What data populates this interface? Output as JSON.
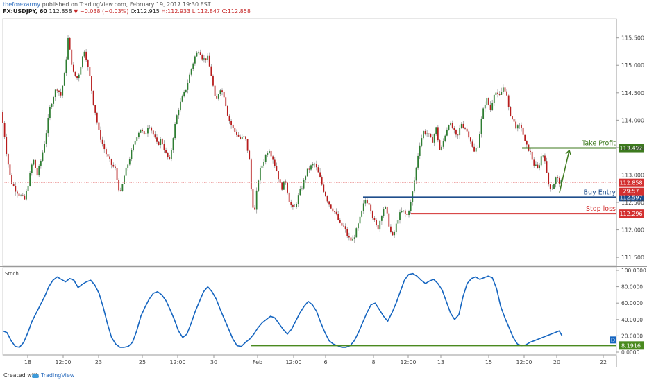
{
  "header": {
    "author": "theforexarmy",
    "published": "published on TradingView.com, February 19, 2017 19:30 EST",
    "symbol": "FX:USDJPY, 60",
    "last": "112.858",
    "change": "−0.038 (−0.03%)",
    "open": "O:112.915",
    "high": "H:112.933",
    "low": "L:112.847",
    "close": "C:112.858"
  },
  "footer": {
    "created_with": "Created with",
    "brand": "TradingView"
  },
  "colors": {
    "up_candle": "#2e7d32",
    "down_candle": "#b71c1c",
    "wick": "#999999",
    "take_profit": "#3d7a1e",
    "buy_entry": "#1f4e8c",
    "stop_loss": "#d32f2f",
    "stoch": "#1565c0",
    "stoch_level": "#4a8a1f",
    "last_price_badge": "#d32f2f",
    "countdown_badge": "#d32f2f"
  },
  "chart_data": [
    {
      "type": "candlestick",
      "title": "FX:USDJPY, 60",
      "ylim": [
        111.35,
        115.85
      ],
      "yticks": [
        "115.500",
        "115.000",
        "114.500",
        "114.000",
        "113.500",
        "113.000",
        "112.500",
        "112.000",
        "111.500"
      ],
      "xticks": [
        "18",
        "12:00",
        "23",
        "25",
        "12:00",
        "30",
        "Feb",
        "12:00",
        "6",
        "8",
        "12:00",
        "13",
        "15",
        "12:00",
        "20",
        "22"
      ],
      "xtick_index": [
        0,
        1,
        2,
        3,
        4,
        5,
        6,
        7,
        8,
        9,
        10,
        11,
        12,
        13,
        14,
        15
      ],
      "last_price": 112.858,
      "last_price_label": "112.858",
      "countdown_label": "29:57",
      "levels": [
        {
          "name": "Take Profit",
          "label": "Take Profit",
          "value": 113.492,
          "value_label": "113.492"
        },
        {
          "name": "Buy Entry",
          "label": "Buy Entry",
          "value": 112.597,
          "value_label": "112.597"
        },
        {
          "name": "Stop loss",
          "label": "Stop loss",
          "value": 112.296,
          "value_label": "112.296"
        }
      ],
      "path_points": [
        [
          0,
          114.15
        ],
        [
          4,
          113.85
        ],
        [
          8,
          113.4
        ],
        [
          14,
          112.9
        ],
        [
          20,
          112.75
        ],
        [
          26,
          112.65
        ],
        [
          34,
          112.55
        ],
        [
          40,
          112.9
        ],
        [
          46,
          113.3
        ],
        [
          52,
          113.0
        ],
        [
          58,
          113.3
        ],
        [
          64,
          113.7
        ],
        [
          70,
          114.2
        ],
        [
          74,
          114.4
        ],
        [
          80,
          114.6
        ],
        [
          86,
          114.45
        ],
        [
          92,
          114.9
        ],
        [
          96,
          115.5
        ],
        [
          100,
          115.15
        ],
        [
          104,
          114.85
        ],
        [
          110,
          114.75
        ],
        [
          116,
          115.1
        ],
        [
          120,
          115.3
        ],
        [
          124,
          115.0
        ],
        [
          128,
          114.75
        ],
        [
          132,
          114.35
        ],
        [
          136,
          114.1
        ],
        [
          140,
          113.8
        ],
        [
          146,
          113.55
        ],
        [
          152,
          113.35
        ],
        [
          158,
          113.2
        ],
        [
          164,
          113.1
        ],
        [
          168,
          112.8
        ],
        [
          172,
          112.65
        ],
        [
          176,
          112.95
        ],
        [
          182,
          113.2
        ],
        [
          188,
          113.45
        ],
        [
          194,
          113.7
        ],
        [
          200,
          113.85
        ],
        [
          206,
          113.7
        ],
        [
          212,
          113.95
        ],
        [
          218,
          113.75
        ],
        [
          224,
          113.55
        ],
        [
          230,
          113.65
        ],
        [
          236,
          113.4
        ],
        [
          242,
          113.25
        ],
        [
          248,
          113.8
        ],
        [
          254,
          114.2
        ],
        [
          260,
          114.4
        ],
        [
          266,
          114.6
        ],
        [
          272,
          114.9
        ],
        [
          278,
          115.15
        ],
        [
          284,
          115.3
        ],
        [
          290,
          115.1
        ],
        [
          296,
          115.15
        ],
        [
          302,
          114.8
        ],
        [
          308,
          114.3
        ],
        [
          314,
          114.6
        ],
        [
          320,
          114.45
        ],
        [
          326,
          114.05
        ],
        [
          332,
          113.85
        ],
        [
          338,
          113.75
        ],
        [
          344,
          113.65
        ],
        [
          350,
          113.7
        ],
        [
          356,
          113.3
        ],
        [
          360,
          112.5
        ],
        [
          364,
          112.35
        ],
        [
          368,
          112.85
        ],
        [
          372,
          113.1
        ],
        [
          378,
          113.3
        ],
        [
          384,
          113.5
        ],
        [
          390,
          113.3
        ],
        [
          396,
          113.05
        ],
        [
          402,
          112.75
        ],
        [
          408,
          112.9
        ],
        [
          414,
          112.5
        ],
        [
          420,
          112.35
        ],
        [
          426,
          112.6
        ],
        [
          432,
          112.8
        ],
        [
          438,
          113.05
        ],
        [
          444,
          113.15
        ],
        [
          450,
          113.2
        ],
        [
          456,
          113.0
        ],
        [
          462,
          112.75
        ],
        [
          468,
          112.55
        ],
        [
          474,
          112.4
        ],
        [
          480,
          112.3
        ],
        [
          486,
          112.1
        ],
        [
          492,
          112.05
        ],
        [
          498,
          111.85
        ],
        [
          504,
          111.8
        ],
        [
          510,
          112.0
        ],
        [
          516,
          112.25
        ],
        [
          522,
          112.55
        ],
        [
          528,
          112.5
        ],
        [
          534,
          112.2
        ],
        [
          540,
          112.0
        ],
        [
          546,
          112.3
        ],
        [
          550,
          112.45
        ],
        [
          554,
          112.25
        ],
        [
          558,
          112.0
        ],
        [
          562,
          111.85
        ],
        [
          566,
          112.05
        ],
        [
          570,
          112.25
        ],
        [
          576,
          112.35
        ],
        [
          582,
          112.25
        ],
        [
          588,
          112.5
        ],
        [
          594,
          113.0
        ],
        [
          600,
          113.55
        ],
        [
          606,
          113.8
        ],
        [
          612,
          113.75
        ],
        [
          618,
          113.6
        ],
        [
          624,
          113.85
        ],
        [
          630,
          113.4
        ],
        [
          636,
          113.7
        ],
        [
          642,
          113.95
        ],
        [
          648,
          113.85
        ],
        [
          654,
          113.65
        ],
        [
          660,
          113.95
        ],
        [
          666,
          113.85
        ],
        [
          672,
          113.7
        ],
        [
          678,
          113.4
        ],
        [
          684,
          113.55
        ],
        [
          690,
          114.1
        ],
        [
          696,
          114.4
        ],
        [
          702,
          114.2
        ],
        [
          708,
          114.55
        ],
        [
          714,
          114.4
        ],
        [
          720,
          114.6
        ],
        [
          724,
          114.55
        ],
        [
          728,
          114.2
        ],
        [
          734,
          114.0
        ],
        [
          740,
          113.85
        ],
        [
          746,
          113.9
        ],
        [
          752,
          113.55
        ],
        [
          758,
          113.45
        ],
        [
          764,
          113.2
        ],
        [
          770,
          113.1
        ],
        [
          776,
          113.4
        ],
        [
          780,
          113.3
        ],
        [
          784,
          112.85
        ],
        [
          790,
          112.75
        ],
        [
          796,
          112.95
        ],
        [
          802,
          112.86
        ]
      ]
    },
    {
      "type": "line",
      "title": "Stoch",
      "ylim": [
        0,
        100
      ],
      "yticks": [
        "100.0000",
        "80.0000",
        "60.0000",
        "40.0000",
        "20.0000",
        "0.0000"
      ],
      "level": 8.1916,
      "level_label": "8.1916",
      "badge": "D",
      "x": [
        0,
        6,
        12,
        18,
        24,
        30,
        36,
        42,
        48,
        54,
        60,
        66,
        72,
        78,
        84,
        90,
        96,
        102,
        108,
        114,
        120,
        126,
        132,
        138,
        144,
        150,
        156,
        162,
        168,
        174,
        180,
        186,
        192,
        198,
        204,
        210,
        216,
        222,
        228,
        234,
        240,
        246,
        252,
        258,
        264,
        270,
        276,
        282,
        288,
        294,
        300,
        306,
        312,
        318,
        324,
        330,
        336,
        342,
        348,
        354,
        360,
        366,
        372,
        378,
        384,
        390,
        396,
        402,
        408,
        414,
        420,
        426,
        432,
        438,
        444,
        450,
        456,
        462,
        468,
        474,
        480,
        486,
        492,
        498,
        504,
        510,
        516,
        522,
        528,
        534,
        540,
        546,
        552,
        558,
        564,
        570,
        576,
        582,
        588,
        594,
        600,
        606,
        612,
        618,
        624,
        630,
        636,
        642,
        648,
        654,
        660,
        666,
        672,
        678,
        684,
        690,
        696,
        702,
        708,
        714,
        720,
        726,
        732,
        738,
        744,
        750,
        756,
        762,
        768,
        774,
        780,
        786,
        792,
        798,
        802
      ],
      "values": [
        26,
        24,
        14,
        7,
        6,
        12,
        24,
        38,
        48,
        58,
        68,
        80,
        88,
        92,
        89,
        86,
        90,
        88,
        79,
        83,
        86,
        88,
        82,
        72,
        55,
        35,
        18,
        10,
        6,
        6,
        7,
        12,
        26,
        44,
        55,
        65,
        72,
        74,
        70,
        63,
        52,
        40,
        26,
        18,
        22,
        35,
        50,
        62,
        74,
        80,
        74,
        65,
        52,
        40,
        28,
        16,
        8,
        7,
        12,
        16,
        22,
        30,
        36,
        40,
        44,
        42,
        35,
        28,
        22,
        28,
        38,
        48,
        56,
        62,
        58,
        50,
        36,
        24,
        14,
        10,
        8,
        6,
        6,
        8,
        14,
        24,
        36,
        48,
        58,
        60,
        52,
        44,
        38,
        48,
        60,
        74,
        88,
        95,
        96,
        93,
        88,
        84,
        87,
        89,
        84,
        76,
        62,
        48,
        40,
        46,
        68,
        84,
        90,
        92,
        89,
        91,
        93,
        91,
        78,
        56,
        42,
        30,
        18,
        10,
        8,
        9,
        12,
        14,
        16,
        18,
        20,
        22,
        24,
        26,
        20
      ]
    }
  ]
}
